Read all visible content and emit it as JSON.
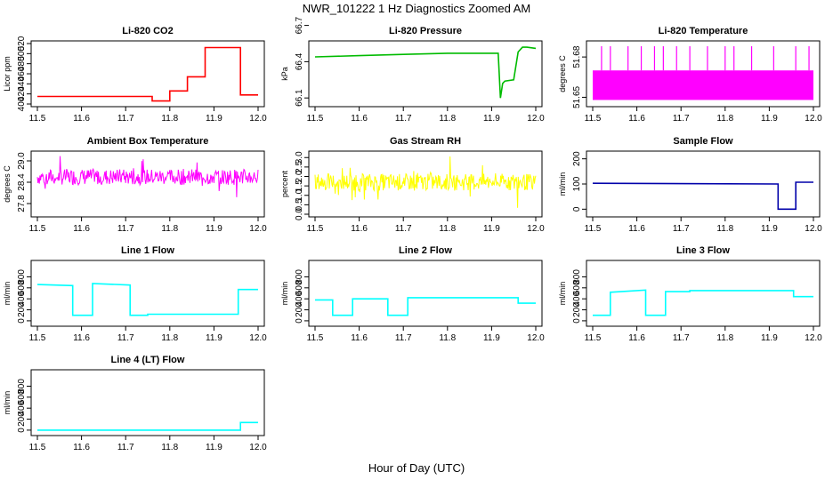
{
  "title": "NWR_101222  1 Hz Diagnostics Zoomed AM",
  "xlabel": "Hour of Day (UTC)",
  "chart_data": [
    {
      "type": "line",
      "title": "Li-820 CO2",
      "ylabel": "Licor ppm",
      "color": "#ff0000",
      "xlim": [
        11.5,
        12.0
      ],
      "ylim": [
        400,
        520
      ],
      "yticks": [
        "400",
        "420",
        "440",
        "460",
        "480",
        "500",
        "520"
      ],
      "xticks": [
        "11.5",
        "11.6",
        "11.7",
        "11.8",
        "11.9",
        "12.0"
      ],
      "x": [
        11.5,
        11.76,
        11.76,
        11.8,
        11.8,
        11.84,
        11.84,
        11.88,
        11.88,
        11.96,
        11.96,
        12.0
      ],
      "y": [
        415,
        415,
        406,
        406,
        426,
        426,
        454,
        454,
        512,
        512,
        418,
        418
      ]
    },
    {
      "type": "line",
      "title": "Li-820 Pressure",
      "ylabel": "kPa",
      "color": "#00bb00",
      "xlim": [
        11.5,
        12.0
      ],
      "ylim": [
        66.05,
        66.55
      ],
      "yticks": [
        "66.1",
        "66.4",
        "66.7"
      ],
      "xticks": [
        "11.5",
        "11.6",
        "11.7",
        "11.8",
        "11.9",
        "12.0"
      ],
      "x": [
        11.5,
        11.6,
        11.7,
        11.8,
        11.9,
        11.915,
        11.92,
        11.925,
        11.93,
        11.95,
        11.96,
        11.97,
        11.98,
        12.0
      ],
      "y": [
        66.44,
        66.45,
        66.46,
        66.47,
        66.47,
        66.47,
        66.1,
        66.22,
        66.24,
        66.25,
        66.48,
        66.52,
        66.52,
        66.51
      ]
    },
    {
      "type": "line",
      "title": "Li-820 Temperature",
      "ylabel": "degrees C",
      "color": "#ff00ff",
      "xlim": [
        11.5,
        12.0
      ],
      "ylim": [
        51.645,
        51.69
      ],
      "yticks": [
        "51.65",
        "51.68"
      ],
      "xticks": [
        "11.5",
        "11.6",
        "11.7",
        "11.8",
        "11.9",
        "12.0"
      ],
      "band": [
        51.648,
        51.67
      ],
      "spikes_x": [
        11.52,
        11.54,
        11.58,
        11.61,
        11.64,
        11.66,
        11.69,
        11.72,
        11.76,
        11.8,
        11.82,
        11.86,
        11.91,
        11.96,
        11.99
      ],
      "spike_y": 51.688
    },
    {
      "type": "line",
      "title": "Ambient Box Temperature",
      "ylabel": "degrees C",
      "color": "#ff00ff",
      "xlim": [
        11.5,
        12.0
      ],
      "ylim": [
        27.5,
        29.2
      ],
      "yticks": [
        "27.8",
        "28.4",
        "29.0"
      ],
      "xticks": [
        "11.5",
        "11.6",
        "11.7",
        "11.8",
        "11.9",
        "12.0"
      ],
      "mean": 28.55,
      "noise": 0.45
    },
    {
      "type": "line",
      "title": "Gas Stream RH",
      "ylabel": "percent",
      "color": "#ffff00",
      "xlim": [
        11.5,
        12.0
      ],
      "ylim": [
        0,
        3.2
      ],
      "yticks": [
        "0.0",
        "0.5",
        "1.0",
        "1.5",
        "2.0",
        "2.5",
        "3.0"
      ],
      "xticks": [
        "11.5",
        "11.6",
        "11.7",
        "11.8",
        "11.9",
        "12.0"
      ],
      "mean": 1.7,
      "noise": 0.9
    },
    {
      "type": "line",
      "title": "Sample Flow",
      "ylabel": "ml/min",
      "color": "#0000aa",
      "xlim": [
        11.5,
        12.0
      ],
      "ylim": [
        -20,
        220
      ],
      "yticks": [
        "0",
        "100",
        "200"
      ],
      "xticks": [
        "11.5",
        "11.6",
        "11.7",
        "11.8",
        "11.9",
        "12.0"
      ],
      "x": [
        11.5,
        11.92,
        11.92,
        11.96,
        11.96,
        12.0
      ],
      "y": [
        103,
        100,
        0,
        0,
        107,
        107
      ]
    },
    {
      "type": "line",
      "title": "Line 1 Flow",
      "ylabel": "ml/min",
      "color": "#00ffff",
      "xlim": [
        11.5,
        12.0
      ],
      "ylim": [
        -50,
        1050
      ],
      "yticks": [
        "0",
        "200",
        "400",
        "600",
        "800"
      ],
      "xticks": [
        "11.5",
        "11.6",
        "11.7",
        "11.8",
        "11.9",
        "12.0"
      ],
      "x": [
        11.5,
        11.58,
        11.58,
        11.625,
        11.625,
        11.71,
        11.71,
        11.75,
        11.75,
        11.955,
        11.955,
        12.0
      ],
      "y": [
        660,
        640,
        100,
        100,
        680,
        650,
        100,
        100,
        120,
        120,
        570,
        570
      ]
    },
    {
      "type": "line",
      "title": "Line 2 Flow",
      "ylabel": "ml/min",
      "color": "#00ffff",
      "xlim": [
        11.5,
        12.0
      ],
      "ylim": [
        -50,
        1050
      ],
      "yticks": [
        "0",
        "200",
        "400",
        "600",
        "800"
      ],
      "xticks": [
        "11.5",
        "11.6",
        "11.7",
        "11.8",
        "11.9",
        "12.0"
      ],
      "x": [
        11.5,
        11.54,
        11.54,
        11.585,
        11.585,
        11.665,
        11.665,
        11.71,
        11.71,
        11.96,
        11.96,
        12.0
      ],
      "y": [
        380,
        380,
        100,
        100,
        400,
        400,
        100,
        100,
        420,
        420,
        320,
        320
      ]
    },
    {
      "type": "line",
      "title": "Line 3 Flow",
      "ylabel": "ml/min",
      "color": "#00ffff",
      "xlim": [
        11.5,
        12.0
      ],
      "ylim": [
        -50,
        1050
      ],
      "yticks": [
        "0",
        "200",
        "400",
        "600",
        "800"
      ],
      "xticks": [
        "11.5",
        "11.6",
        "11.7",
        "11.8",
        "11.9",
        "12.0"
      ],
      "x": [
        11.5,
        11.54,
        11.54,
        11.62,
        11.62,
        11.665,
        11.665,
        11.72,
        11.72,
        11.955,
        11.955,
        12.0
      ],
      "y": [
        100,
        100,
        520,
        560,
        100,
        100,
        530,
        530,
        550,
        550,
        440,
        440
      ]
    },
    {
      "type": "line",
      "title": "Line 4 (LT) Flow",
      "ylabel": "ml/min",
      "color": "#00ffff",
      "xlim": [
        11.5,
        12.0
      ],
      "ylim": [
        -50,
        1050
      ],
      "yticks": [
        "0",
        "200",
        "400",
        "600",
        "800"
      ],
      "xticks": [
        "11.5",
        "11.6",
        "11.7",
        "11.8",
        "11.9",
        "12.0"
      ],
      "x": [
        11.5,
        11.96,
        11.96,
        12.0
      ],
      "y": [
        0,
        0,
        140,
        140
      ]
    }
  ]
}
